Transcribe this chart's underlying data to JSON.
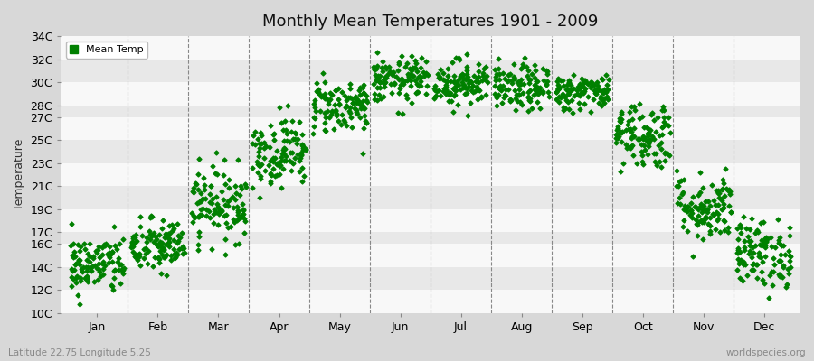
{
  "title": "Monthly Mean Temperatures 1901 - 2009",
  "ylabel": "Temperature",
  "xlabel_labels": [
    "Jan",
    "Feb",
    "Mar",
    "Apr",
    "May",
    "Jun",
    "Jul",
    "Aug",
    "Sep",
    "Oct",
    "Nov",
    "Dec"
  ],
  "ytick_labels": [
    "10C",
    "12C",
    "14C",
    "16C",
    "17C",
    "19C",
    "21C",
    "23C",
    "25C",
    "27C",
    "28C",
    "30C",
    "32C",
    "34C"
  ],
  "ytick_values": [
    10,
    12,
    14,
    16,
    17,
    19,
    21,
    23,
    25,
    27,
    28,
    30,
    32,
    34
  ],
  "ylim": [
    10,
    34
  ],
  "dot_color": "#008000",
  "dot_size": 6,
  "fig_background_color": "#d8d8d8",
  "plot_bg_color": "#f0f0f0",
  "band_color_light": "#f8f8f8",
  "band_color_dark": "#e8e8e8",
  "dashed_line_color": "#888888",
  "legend_label": "Mean Temp",
  "bottom_left_text": "Latitude 22.75 Longitude 5.25",
  "bottom_right_text": "worldspecies.org",
  "num_years": 109,
  "monthly_means": [
    14.2,
    15.8,
    19.5,
    24.0,
    28.0,
    30.2,
    30.0,
    29.5,
    29.2,
    25.5,
    19.2,
    15.2
  ],
  "monthly_stds": [
    1.3,
    1.2,
    1.6,
    1.5,
    1.2,
    1.0,
    1.0,
    1.0,
    0.8,
    1.5,
    1.5,
    1.5
  ],
  "seed": 42
}
